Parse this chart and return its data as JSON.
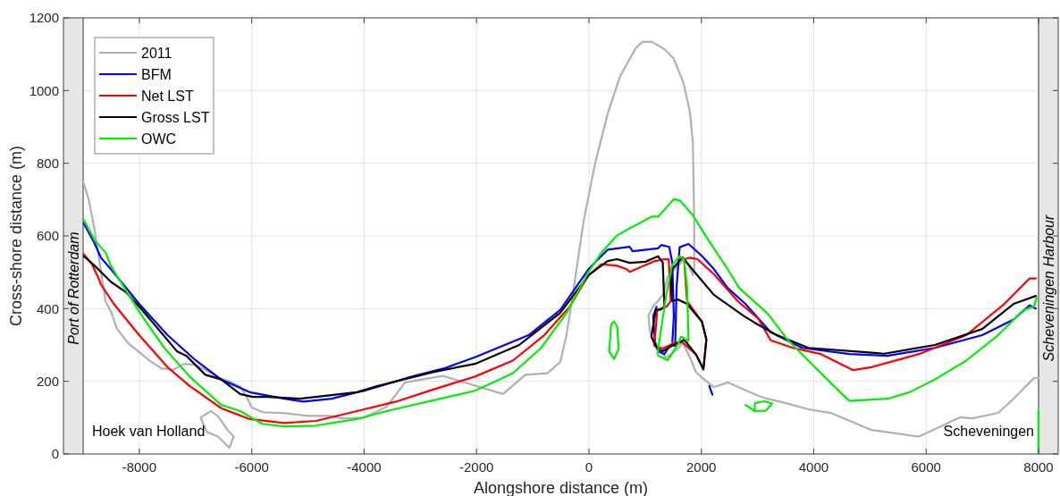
{
  "chart_data": {
    "type": "line",
    "xlabel": "Alongshore distance (m)",
    "ylabel": "Cross-shore distance (m)",
    "xlim": [
      -9350,
      8350
    ],
    "ylim": [
      0,
      1200
    ],
    "xticks": [
      -8000,
      -6000,
      -4000,
      -2000,
      0,
      2000,
      4000,
      6000,
      8000
    ],
    "yticks": [
      0,
      200,
      400,
      600,
      800,
      1000,
      1200
    ],
    "grid": true,
    "legend": "top left",
    "bands": [
      {
        "axis": "x",
        "from": -9350,
        "to": -9000,
        "label": "Port of Rotterdam",
        "color": "#e6e6e6"
      },
      {
        "axis": "x",
        "from": 8000,
        "to": 8350,
        "label": "Scheveningen Harbour",
        "color": "#e6e6e6"
      }
    ],
    "ref_lines": [
      {
        "axis": "x",
        "value": -9000,
        "color": "#555555"
      },
      {
        "axis": "x",
        "value": 8000,
        "color": "#555555"
      }
    ],
    "annotations": [
      "Hoek van Holland",
      "Scheveningen"
    ],
    "series": [
      {
        "name": "2011",
        "color": "#b0b0b0",
        "x": [
          -9000,
          -8900,
          -8800,
          -8700,
          -8600,
          -8500,
          -8400,
          -8200,
          -8000,
          -7800,
          -7600,
          -7400,
          -7200,
          -7000,
          -6800,
          -6600,
          -6400,
          -6200,
          -6100,
          -6000,
          -5800,
          -5400,
          -5000,
          -4600,
          -4400,
          -4000,
          -3600,
          -3270,
          -2600,
          -1530,
          -1130,
          -740,
          -510,
          -400,
          -285,
          -95,
          106,
          333,
          556,
          837,
          950,
          1118,
          1343,
          1508,
          1679,
          1793,
          1849,
          1873,
          1873,
          1849,
          1773,
          1693,
          1397,
          1317,
          1138,
          1058,
          1085,
          1164,
          1376,
          1587,
          1667,
          1799,
          1905,
          2090,
          2222,
          2476,
          3016,
          3175,
          3508,
          3905,
          4302,
          5032,
          5873,
          6603,
          6825,
          7280,
          7556,
          7841,
          7920,
          8000
        ],
        "values": [
          750,
          700,
          620,
          520,
          420,
          390,
          345,
          305,
          280,
          255,
          235,
          232,
          248,
          245,
          230,
          210,
          200,
          185,
          160,
          128,
          115,
          112,
          105,
          105,
          98,
          100,
          130,
          197,
          215,
          165,
          218,
          222,
          253,
          327,
          440,
          640,
          797,
          936,
          1040,
          1118,
          1134,
          1134,
          1114,
          1088,
          1023,
          945,
          858,
          640,
          510,
          492,
          520,
          536,
          487,
          438,
          405,
          381,
          339,
          298,
          265,
          290,
          307,
          265,
          225,
          200,
          184,
          197,
          160,
          152,
          140,
          123,
          113,
          66,
          48,
          101,
          98,
          113,
          152,
          197,
          209,
          209
        ]
      },
      {
        "color": "#b0b0b0",
        "x": [
          -6730,
          -6600,
          -6430,
          -6320,
          -6400,
          -6600,
          -6800,
          -6910,
          -6760
        ],
        "values": [
          118,
          104,
          66,
          48,
          17,
          48,
          61,
          100,
          115
        ]
      },
      {
        "name": "BFM",
        "color": "#0000ff",
        "x": [
          -8990,
          -8794,
          -8682,
          -8508,
          -8003,
          -7498,
          -6992,
          -6543,
          -6038,
          -5419,
          -5083,
          -4576,
          -4127,
          -3995,
          -3152,
          -2590,
          -2028,
          -1073,
          -511,
          -6,
          332,
          725,
          778,
          1230,
          1286,
          1428,
          1484,
          1511,
          1484
        ],
        "values": [
          635,
          579,
          540,
          509,
          413,
          327,
          257,
          205,
          170,
          152,
          144,
          152,
          170,
          174,
          213,
          235,
          266,
          327,
          396,
          509,
          562,
          570,
          558,
          566,
          575,
          570,
          527,
          379,
          309
        ]
      },
      {
        "color": "#0000ff",
        "x": [
          1203,
          1143,
          1175,
          1230,
          1343,
          1450,
          1534,
          1561,
          1614,
          1773,
          2016,
          2222,
          2467,
          2784,
          3233,
          3794,
          4635,
          5313,
          6156,
          6998,
          7556,
          7841,
          7952
        ],
        "values": [
          405,
          379,
          309,
          283,
          275,
          300,
          298,
          462,
          569,
          578,
          544,
          509,
          457,
          413,
          335,
          292,
          275,
          270,
          292,
          327,
          370,
          409,
          400
        ]
      },
      {
        "color": "#0000ff",
        "x": [
          2141,
          2197
        ],
        "values": [
          187,
          163
        ]
      },
      {
        "name": "Net LST",
        "color": "#ff0000",
        "x": [
          -8987,
          -8846,
          -8735,
          -8682,
          -8454,
          -8003,
          -7498,
          -7105,
          -6543,
          -6038,
          -5419,
          -4857,
          -4127,
          -3433,
          -2759,
          -2028,
          -1354,
          -794,
          -343,
          -6,
          219,
          500,
          667,
          725,
          1175,
          1343,
          1420,
          1456,
          1380,
          1217,
          1164,
          1317,
          1534,
          1667,
          1905,
          2037,
          2090,
          2011,
          1746,
          1693,
          1800,
          1932,
          2222,
          2646,
          3016,
          3233,
          3627,
          4127,
          4357,
          4695,
          5032,
          5873,
          6714,
          7392,
          7841,
          7952
        ],
        "values": [
          550,
          523,
          487,
          466,
          413,
          327,
          239,
          187,
          126,
          96,
          85,
          91,
          118,
          144,
          178,
          213,
          257,
          327,
          405,
          492,
          522,
          518,
          509,
          501,
          531,
          536,
          536,
          421,
          405,
          397,
          298,
          290,
          307,
          307,
          274,
          233,
          315,
          364,
          421,
          536,
          540,
          536,
          495,
          421,
          372,
          313,
          292,
          275,
          257,
          231,
          239,
          275,
          327,
          413,
          483,
          483
        ]
      },
      {
        "name": "Gross LST",
        "color": "#000000",
        "x": [
          -8987,
          -8794,
          -8508,
          -8229,
          -7948,
          -7333,
          -7162,
          -6825,
          -6543,
          -6206,
          -5984,
          -5700,
          -5143,
          -4127,
          -3770,
          -2759,
          -2028,
          -1241,
          -511,
          -6,
          332,
          500,
          725,
          1006,
          1230,
          1314,
          1343,
          1270,
          1190,
          1111,
          1217,
          1317,
          1481,
          1614,
          1693,
          1905,
          2037,
          2090,
          2011,
          1746,
          1587,
          1481,
          1456,
          1667,
          1825,
          2222,
          2746,
          2952,
          3346,
          3905,
          5032,
          5254,
          6156,
          6998,
          7556,
          7952
        ],
        "values": [
          544,
          518,
          474,
          444,
          396,
          283,
          270,
          218,
          205,
          165,
          157,
          157,
          152,
          170,
          187,
          226,
          248,
          300,
          388,
          492,
          531,
          536,
          526,
          529,
          544,
          527,
          405,
          397,
          397,
          323,
          290,
          283,
          298,
          307,
          315,
          274,
          233,
          315,
          364,
          413,
          425,
          421,
          504,
          541,
          511,
          438,
          381,
          361,
          327,
          292,
          279,
          276,
          300,
          344,
          413,
          435
        ]
      },
      {
        "name": "OWC",
        "color": "#00ee00",
        "x": [
          -8987,
          -8794,
          -8594,
          -8508,
          -8229,
          -7948,
          -7556,
          -7105,
          -6543,
          -6206,
          -5813,
          -5419,
          -4857,
          -4127,
          -3600,
          -2759,
          -2028,
          -1354,
          -849,
          -398,
          -6,
          219,
          500,
          725,
          1117,
          1230,
          1511,
          1624,
          1849,
          2127,
          2467,
          2672,
          3175,
          3346,
          3514,
          3905,
          4470,
          4635,
          5313,
          5706,
          6156,
          6714,
          7280,
          7730,
          7920,
          7965
        ],
        "values": [
          644,
          588,
          553,
          518,
          448,
          379,
          292,
          213,
          135,
          118,
          83,
          76,
          78,
          96,
          118,
          148,
          174,
          222,
          292,
          388,
          501,
          553,
          601,
          621,
          653,
          653,
          701,
          697,
          657,
          588,
          509,
          457,
          387,
          353,
          318,
          257,
          170,
          146,
          152,
          170,
          205,
          257,
          327,
          396,
          405,
          430
        ]
      },
      {
        "color": "#00ee00",
        "x": [
          8000,
          8000
        ],
        "values": [
          118,
          5
        ]
      },
      {
        "color": "#00ee00",
        "x": [
          1217,
          1376,
          1481,
          1614,
          1693,
          1746,
          1773,
          1640,
          1587,
          1402,
          1240
        ],
        "values": [
          274,
          438,
          520,
          544,
          536,
          462,
          311,
          323,
          302,
          258,
          270
        ]
      },
      {
        "color": "#00ee00",
        "x": [
          449,
          503,
          529,
          449,
          360,
          397,
          430
        ],
        "values": [
          364,
          351,
          290,
          261,
          283,
          356,
          362
        ]
      },
      {
        "color": "#00ee00",
        "x": [
          2784,
          2952,
          2952,
          3121,
          3262,
          3149,
          2952
        ],
        "values": [
          135,
          118,
          140,
          145,
          139,
          119,
          118
        ]
      }
    ]
  }
}
